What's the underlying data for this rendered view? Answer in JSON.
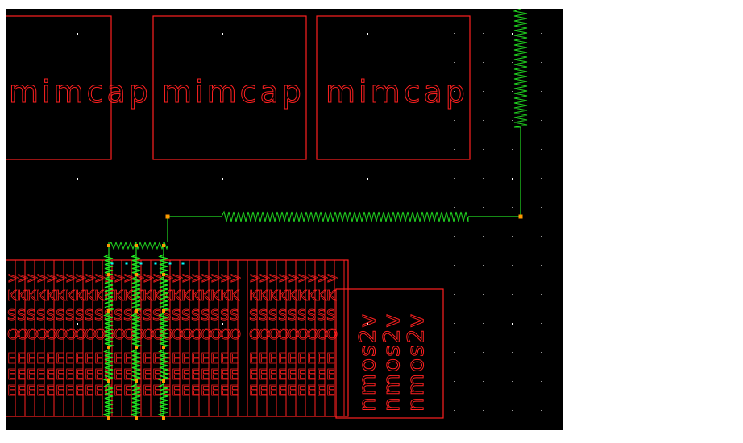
{
  "canvas": {
    "background": "#000000",
    "grid_color": "#9a9a9a",
    "major_grid_color": "#ffffff",
    "cell_color": "#ff0000",
    "wire_color": "#00cc00",
    "pin_color": "#ff9900",
    "marker_color": "#00ffff"
  },
  "cells": {
    "mimcap_1": {
      "label": "mimcap"
    },
    "mimcap_2": {
      "label": "mimcap"
    },
    "mimcap_3": {
      "label": "mimcap"
    },
    "nmos_group": {
      "labels": [
        "nmos2v",
        "nmos2v",
        "nmos2v"
      ]
    }
  },
  "icons": {
    "resistor": "resistor-icon",
    "pin": "pin-icon"
  }
}
